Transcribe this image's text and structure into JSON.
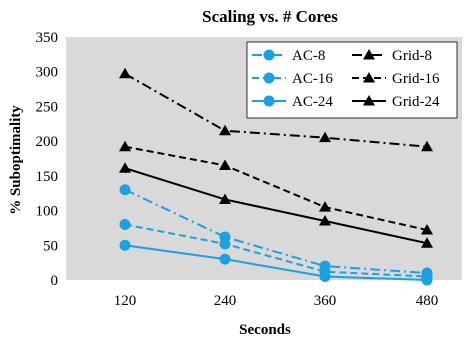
{
  "chart_data": {
    "type": "line",
    "title": "Scaling vs. # Cores",
    "xlabel": "Seconds",
    "ylabel": "% Suboptimality",
    "x": [
      120,
      240,
      360,
      480
    ],
    "x_tick_labels": [
      "120",
      "240",
      "360",
      "480"
    ],
    "ylim": [
      0,
      350
    ],
    "y_ticks": [
      0,
      50,
      100,
      150,
      200,
      250,
      300,
      350
    ],
    "y_tick_labels": [
      "0",
      "50",
      "100",
      "150",
      "200",
      "250",
      "300",
      "350"
    ],
    "grid": false,
    "plot_background": "#d9d9d9",
    "legend_placement": "top-right",
    "series": [
      {
        "name": "AC-8",
        "values": [
          130,
          62,
          20,
          10
        ],
        "color": "#1ba1e2",
        "dash": "dashdot",
        "marker": "circle"
      },
      {
        "name": "AC-16",
        "values": [
          80,
          52,
          12,
          5
        ],
        "color": "#1ba1e2",
        "dash": "dashed",
        "marker": "circle"
      },
      {
        "name": "AC-24",
        "values": [
          50,
          30,
          5,
          0
        ],
        "color": "#1ba1e2",
        "dash": "solid",
        "marker": "circle"
      },
      {
        "name": "Grid-8",
        "values": [
          297,
          215,
          205,
          192
        ],
        "color": "#000000",
        "dash": "dashdot",
        "marker": "triangle"
      },
      {
        "name": "Grid-16",
        "values": [
          192,
          165,
          105,
          72
        ],
        "color": "#000000",
        "dash": "dashed",
        "marker": "triangle"
      },
      {
        "name": "Grid-24",
        "values": [
          161,
          116,
          85,
          53
        ],
        "color": "#000000",
        "dash": "solid",
        "marker": "triangle"
      }
    ],
    "legend_columns": [
      [
        "AC-8",
        "AC-16",
        "AC-24"
      ],
      [
        "Grid-8",
        "Grid-16",
        "Grid-24"
      ]
    ]
  }
}
